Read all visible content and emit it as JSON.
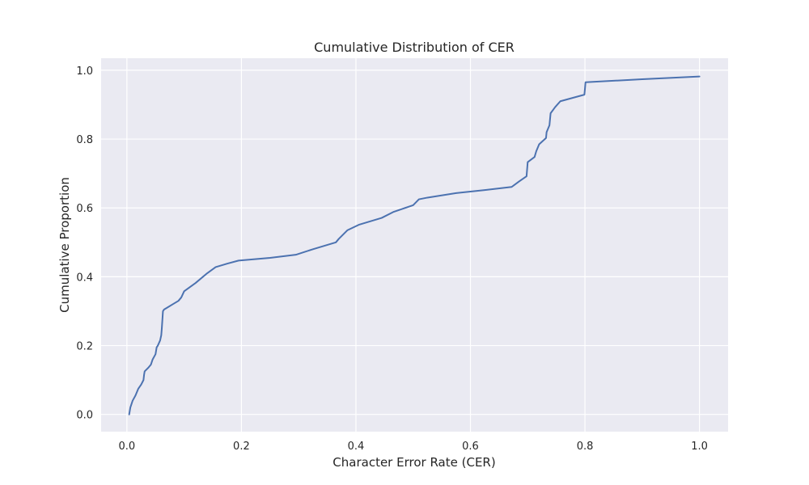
{
  "chart_data": {
    "type": "line",
    "title": "Cumulative Distribution of CER",
    "xlabel": "Character Error Rate (CER)",
    "ylabel": "Cumulative Proportion",
    "xlim": [
      -0.045,
      1.05
    ],
    "ylim": [
      -0.05,
      1.035
    ],
    "xticks": [
      0.0,
      0.2,
      0.4,
      0.6,
      0.8,
      1.0
    ],
    "xtick_labels": [
      "0.0",
      "0.2",
      "0.4",
      "0.6",
      "0.8",
      "1.0"
    ],
    "yticks": [
      0.0,
      0.2,
      0.4,
      0.6,
      0.8,
      1.0
    ],
    "ytick_labels": [
      "0.0",
      "0.2",
      "0.4",
      "0.6",
      "0.8",
      "1.0"
    ],
    "grid": true,
    "colors": {
      "background": "#EAEAF2",
      "grid": "#FFFFFF",
      "line": "#4C72B0",
      "text": "#262626"
    },
    "series": [
      {
        "x": [
          0.004,
          0.006,
          0.01,
          0.015,
          0.02,
          0.025,
          0.029,
          0.03,
          0.031,
          0.037,
          0.042,
          0.045,
          0.05,
          0.052,
          0.054,
          0.058,
          0.06,
          0.061,
          0.062,
          0.063,
          0.065,
          0.07,
          0.08,
          0.09,
          0.095,
          0.1,
          0.11,
          0.12,
          0.14,
          0.155,
          0.175,
          0.195,
          0.25,
          0.295,
          0.325,
          0.365,
          0.37,
          0.385,
          0.405,
          0.445,
          0.465,
          0.5,
          0.51,
          0.525,
          0.575,
          0.625,
          0.672,
          0.685,
          0.698,
          0.7,
          0.712,
          0.715,
          0.72,
          0.732,
          0.733,
          0.738,
          0.74,
          0.748,
          0.757,
          0.799,
          0.8,
          0.801,
          0.9,
          1.0
        ],
        "y": [
          0.0,
          0.02,
          0.04,
          0.055,
          0.075,
          0.087,
          0.1,
          0.115,
          0.125,
          0.135,
          0.145,
          0.16,
          0.175,
          0.195,
          0.2,
          0.215,
          0.23,
          0.25,
          0.275,
          0.3,
          0.305,
          0.31,
          0.32,
          0.33,
          0.34,
          0.358,
          0.37,
          0.382,
          0.41,
          0.428,
          0.438,
          0.447,
          0.455,
          0.464,
          0.48,
          0.5,
          0.51,
          0.535,
          0.551,
          0.571,
          0.588,
          0.608,
          0.625,
          0.63,
          0.643,
          0.652,
          0.661,
          0.677,
          0.692,
          0.733,
          0.748,
          0.765,
          0.785,
          0.803,
          0.82,
          0.84,
          0.875,
          0.893,
          0.91,
          0.929,
          0.946,
          0.965,
          0.974,
          0.982
        ]
      }
    ]
  }
}
